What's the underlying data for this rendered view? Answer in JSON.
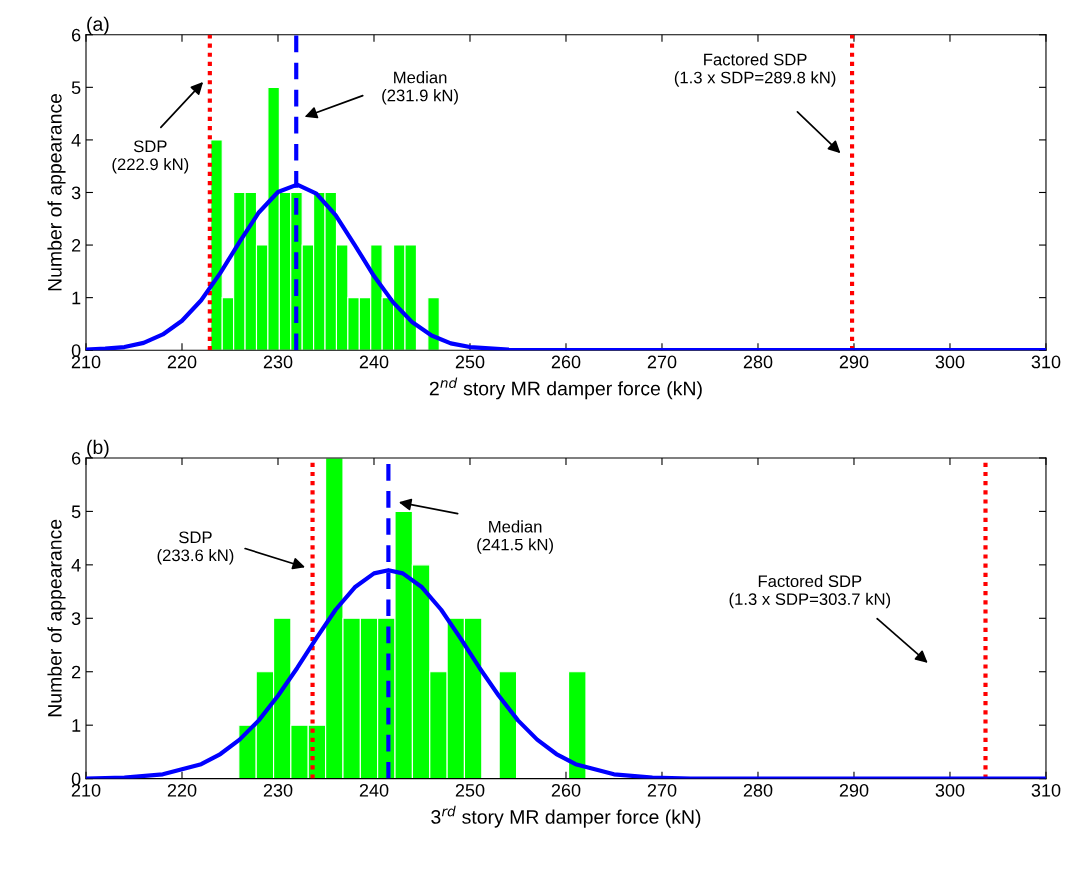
{
  "chart_data": [
    {
      "type": "histogram",
      "title": "(a)",
      "xlabel": "2$^{nd}$ story MR damper force (kN)",
      "ylabel": "Number of appearance",
      "bins": [
        223.0,
        224.19,
        225.38,
        226.57,
        227.76,
        228.95,
        230.14,
        231.33,
        232.52,
        233.71,
        234.9,
        236.09,
        237.28,
        238.47,
        239.66,
        240.85,
        242.04,
        243.23,
        244.42,
        245.61,
        246.8
      ],
      "values": [
        4,
        1,
        3,
        3,
        2,
        5,
        3,
        3,
        2,
        3,
        3,
        2,
        1,
        1,
        2,
        1,
        2,
        2,
        0,
        1
      ],
      "color": "#00ff00",
      "series": [
        {
          "type": "line",
          "color": "#0000ff",
          "x": [
            210,
            212,
            214,
            216,
            218,
            220,
            222,
            224,
            226,
            228,
            230,
            232,
            234,
            236,
            238,
            240,
            242,
            244,
            246,
            248,
            250,
            254,
            260,
            310
          ],
          "values": [
            0.01,
            0.03,
            0.06,
            0.14,
            0.3,
            0.56,
            0.95,
            1.47,
            2.06,
            2.62,
            3.01,
            3.15,
            2.98,
            2.57,
            2.0,
            1.41,
            0.91,
            0.53,
            0.28,
            0.13,
            0.06,
            0.01,
            0,
            0
          ]
        }
      ],
      "ref_lines": [
        {
          "axis": "x",
          "value": 222.9,
          "color": "#ff0000",
          "line_style": "dotted"
        },
        {
          "axis": "x",
          "value": 231.9,
          "color": "#0000ff",
          "line_style": "dashed"
        },
        {
          "axis": "x",
          "value": 289.8,
          "color": "#ff0000",
          "line_style": "dotted"
        }
      ],
      "annotations": [
        "SDP\n(222.9 kN)",
        "Median\n(231.9 kN)",
        "Factored SDP\n(1.3 x SDP=289.8 kN)"
      ],
      "xlim": [
        210,
        310
      ],
      "xticks": [
        210,
        220,
        230,
        240,
        250,
        260,
        270,
        280,
        290,
        300,
        310
      ],
      "ylim": [
        0,
        6
      ],
      "yticks": [
        0,
        1,
        2,
        3,
        4,
        5,
        6
      ],
      "grid": false,
      "legend": false
    },
    {
      "type": "histogram",
      "title": "(b)",
      "xlabel": "3$^{rd}$ story MR damper force (kN)",
      "ylabel": "Number of appearance",
      "bins": [
        225.92,
        227.73,
        229.54,
        231.34,
        233.15,
        234.96,
        236.77,
        238.58,
        240.38,
        242.19,
        244.0,
        245.81,
        247.62,
        249.42,
        251.23,
        253.04,
        254.85,
        256.66,
        258.46,
        260.27,
        262.08
      ],
      "values": [
        1,
        2,
        3,
        1,
        1,
        6,
        3,
        3,
        3,
        5,
        4,
        2,
        3,
        3,
        0,
        2,
        0,
        0,
        0,
        2
      ],
      "color": "#00ff00",
      "series": [
        {
          "type": "line",
          "color": "#0000ff",
          "x": [
            210,
            214,
            218,
            222,
            224,
            226,
            228,
            230,
            232,
            234,
            236,
            238,
            240,
            241.5,
            243,
            245,
            247,
            249,
            251,
            253,
            255,
            257,
            259,
            261,
            265,
            269,
            273,
            310
          ],
          "values": [
            0,
            0.02,
            0.08,
            0.27,
            0.46,
            0.73,
            1.09,
            1.55,
            2.07,
            2.63,
            3.16,
            3.58,
            3.84,
            3.9,
            3.84,
            3.58,
            3.16,
            2.63,
            2.07,
            1.55,
            1.09,
            0.73,
            0.46,
            0.27,
            0.08,
            0.02,
            0,
            0
          ]
        }
      ],
      "ref_lines": [
        {
          "axis": "x",
          "value": 233.6,
          "color": "#ff0000",
          "line_style": "dotted"
        },
        {
          "axis": "x",
          "value": 241.5,
          "color": "#0000ff",
          "line_style": "dashed"
        },
        {
          "axis": "x",
          "value": 303.7,
          "color": "#ff0000",
          "line_style": "dotted"
        }
      ],
      "annotations": [
        "SDP\n(233.6 kN)",
        "Median\n(241.5 kN)",
        "Factored SDP\n(1.3 x SDP=303.7 kN)"
      ],
      "xlim": [
        210,
        310
      ],
      "xticks": [
        210,
        220,
        230,
        240,
        250,
        260,
        270,
        280,
        290,
        300,
        310
      ],
      "ylim": [
        0,
        6
      ],
      "yticks": [
        0,
        1,
        2,
        3,
        4,
        5,
        6
      ],
      "grid": false,
      "legend": false
    }
  ]
}
